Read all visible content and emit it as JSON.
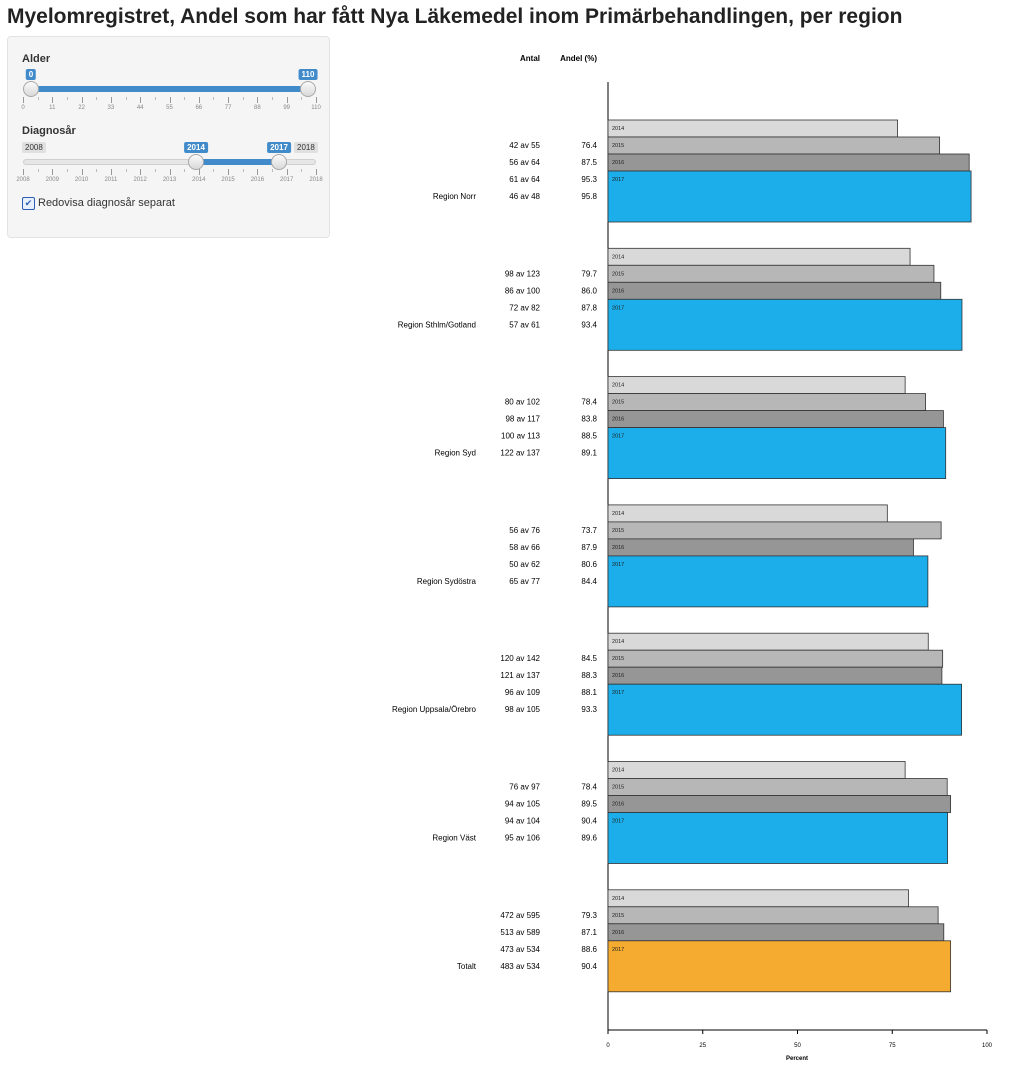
{
  "page_title": "Myelomregistret, Andel som har fått Nya Läkemedel inom Primärbehandlingen, per region",
  "sidebar": {
    "age": {
      "label": "Alder",
      "min": 0,
      "max": 110,
      "value_from": 0,
      "value_to": 110,
      "ticks": [
        "0",
        "11",
        "22",
        "33",
        "44",
        "55",
        "66",
        "77",
        "88",
        "99",
        "110"
      ]
    },
    "year": {
      "label": "Diagnosår",
      "min": 2008,
      "max": 2018,
      "min_label": "2008",
      "max_label": "2018",
      "value_from": 2014,
      "value_to": 2017,
      "from_label": "2014",
      "to_label": "2017",
      "ticks": [
        "2008",
        "2009",
        "2010",
        "2011",
        "2012",
        "2013",
        "2014",
        "2015",
        "2016",
        "2017",
        "2018"
      ]
    },
    "checkbox": {
      "label": "Redovisa diagnosår separat",
      "checked": true,
      "mark": "✔"
    }
  },
  "chart_data": {
    "type": "bar",
    "orientation": "horizontal",
    "col_antal": "Antal",
    "col_andel": "Andel (%)",
    "xlabel": "Percent",
    "xlim": [
      0,
      100
    ],
    "xticks": [
      0,
      25,
      50,
      75,
      100
    ],
    "series_years": [
      "2014",
      "2015",
      "2016",
      "2017"
    ],
    "colors": {
      "2014": "#d9d9d9",
      "2015": "#b7b7b7",
      "2016": "#969696",
      "2017": "#1baeea",
      "2017_total": "#f5ab30"
    },
    "groups": [
      {
        "name": "Region Norr",
        "antal": [
          "42 av 55",
          "56 av 64",
          "61 av 64",
          "46 av 48"
        ],
        "andel": [
          "76.4",
          "87.5",
          "95.3",
          "95.8"
        ],
        "values": [
          76.4,
          87.5,
          95.3,
          95.8
        ]
      },
      {
        "name": "Region Sthlm/Gotland",
        "antal": [
          "98 av 123",
          "86 av 100",
          "72 av 82",
          "57 av 61"
        ],
        "andel": [
          "79.7",
          "86.0",
          "87.8",
          "93.4"
        ],
        "values": [
          79.7,
          86.0,
          87.8,
          93.4
        ]
      },
      {
        "name": "Region Syd",
        "antal": [
          "80 av 102",
          "98 av 117",
          "100 av 113",
          "122 av 137"
        ],
        "andel": [
          "78.4",
          "83.8",
          "88.5",
          "89.1"
        ],
        "values": [
          78.4,
          83.8,
          88.5,
          89.1
        ]
      },
      {
        "name": "Region Sydöstra",
        "antal": [
          "56 av 76",
          "58 av 66",
          "50 av 62",
          "65 av 77"
        ],
        "andel": [
          "73.7",
          "87.9",
          "80.6",
          "84.4"
        ],
        "values": [
          73.7,
          87.9,
          80.6,
          84.4
        ]
      },
      {
        "name": "Region Uppsala/Örebro",
        "antal": [
          "120 av 142",
          "121 av 137",
          "96 av 109",
          "98 av 105"
        ],
        "andel": [
          "84.5",
          "88.3",
          "88.1",
          "93.3"
        ],
        "values": [
          84.5,
          88.3,
          88.1,
          93.3
        ]
      },
      {
        "name": "Region Väst",
        "antal": [
          "76 av 97",
          "94 av 105",
          "94 av 104",
          "95 av 106"
        ],
        "andel": [
          "78.4",
          "89.5",
          "90.4",
          "89.6"
        ],
        "values": [
          78.4,
          89.5,
          90.4,
          89.6
        ]
      },
      {
        "name": "Totalt",
        "antal": [
          "472 av 595",
          "513 av 589",
          "473 av 534",
          "483 av 534"
        ],
        "andel": [
          "79.3",
          "87.1",
          "88.6",
          "90.4"
        ],
        "values": [
          79.3,
          87.1,
          88.6,
          90.4
        ],
        "highlight": true
      }
    ]
  }
}
